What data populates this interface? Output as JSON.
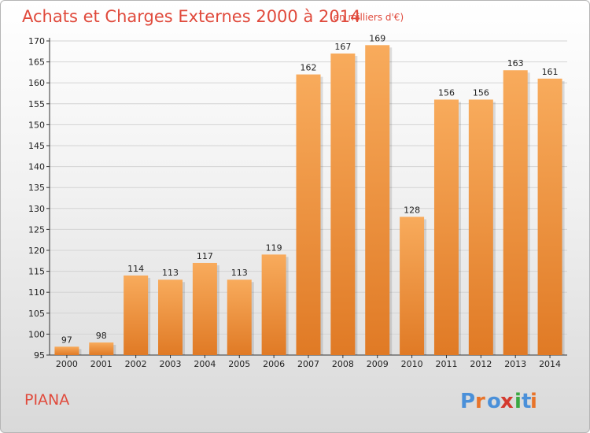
{
  "header": {
    "title": "Achats et Charges Externes 2000 à 2014",
    "unit": "(en milliers d'€)"
  },
  "commune": "PIANA",
  "logo": {
    "text": "Proxiti",
    "colors": [
      "#4a90d9",
      "#e8742a",
      "#4a90d9",
      "#d43a2f",
      "#3aa842",
      "#4a90d9",
      "#e8742a"
    ]
  },
  "colors": {
    "bar_light": "#f8ab5c",
    "bar_dark": "#e07a25",
    "accent": "#e04a3c"
  },
  "chart_data": {
    "type": "bar",
    "categories": [
      "2000",
      "2001",
      "2002",
      "2003",
      "2004",
      "2005",
      "2006",
      "2007",
      "2008",
      "2009",
      "2010",
      "2011",
      "2012",
      "2013",
      "2014"
    ],
    "values": [
      97,
      98,
      114,
      113,
      117,
      113,
      119,
      162,
      167,
      169,
      128,
      156,
      156,
      163,
      161
    ],
    "ylim": [
      95,
      170
    ],
    "yticks": [
      95,
      100,
      105,
      110,
      115,
      120,
      125,
      130,
      135,
      140,
      145,
      150,
      155,
      160,
      165,
      170
    ],
    "grid": true,
    "legend": "none"
  }
}
